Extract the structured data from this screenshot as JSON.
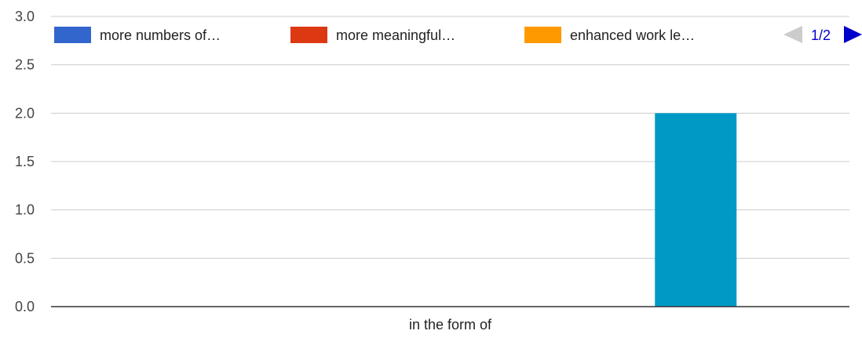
{
  "chart_data": {
    "type": "bar",
    "categories": [
      "in the form of"
    ],
    "series": [
      {
        "name": "more numbers of…",
        "color": "#3366cc",
        "values": [
          0
        ]
      },
      {
        "name": "more meaningful…",
        "color": "#dc3912",
        "values": [
          0
        ]
      },
      {
        "name": "enhanced work le…",
        "color": "#ff9900",
        "values": [
          0
        ]
      },
      {
        "name": "",
        "color": "#0099c6",
        "values": [
          2
        ]
      }
    ],
    "legend_visible_count": 3,
    "ylim": [
      0,
      3
    ],
    "yticks": [
      "0.0",
      "0.5",
      "1.0",
      "1.5",
      "2.0",
      "2.5",
      "3.0"
    ],
    "grid": true,
    "legend_position": "top",
    "legend_pager": {
      "label": "1/2",
      "prev_color": "#cccccc",
      "next_color": "#0000cc"
    },
    "title": "",
    "xlabel": "",
    "ylabel": ""
  }
}
